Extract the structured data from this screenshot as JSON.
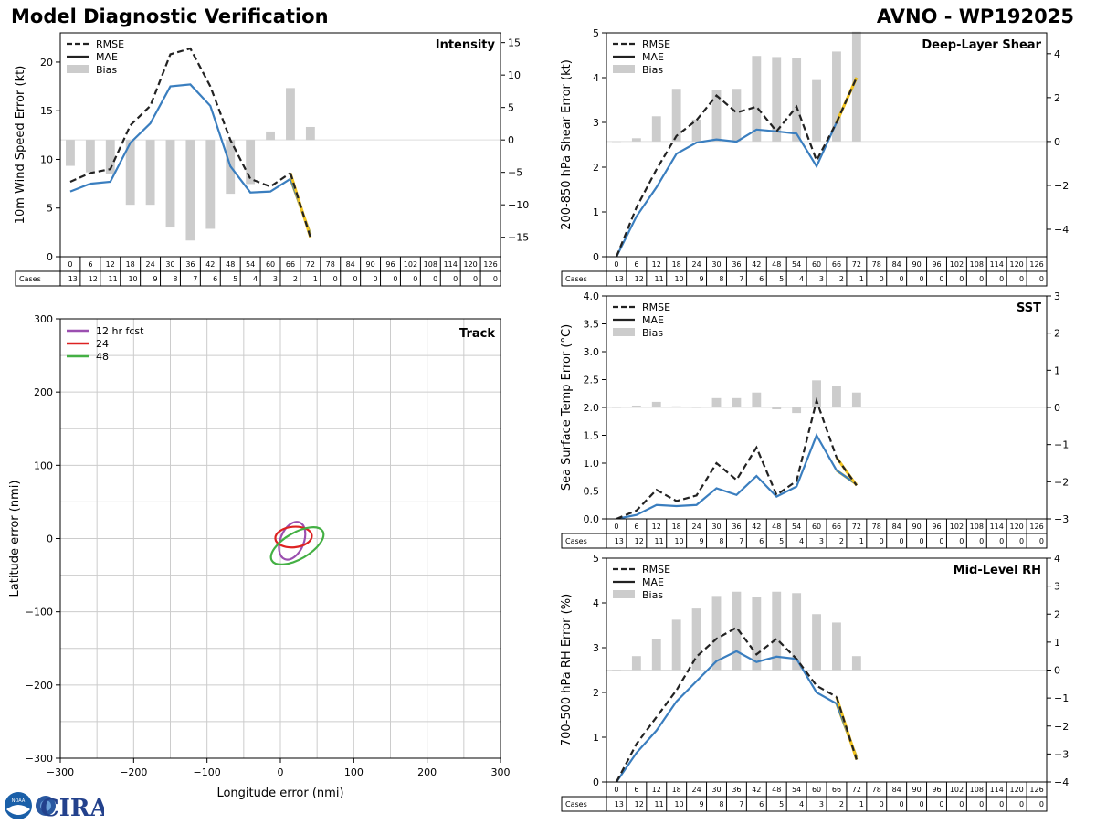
{
  "header": {
    "title_left": "Model Diagnostic Verification",
    "title_right": "AVNO - WP192025"
  },
  "colors": {
    "rmse": "#222222",
    "mae": "#3a7ebf",
    "bias": "#cccccc",
    "highlight": "#f2c31c",
    "grid": "#cccccc",
    "track_12": "#9b4fb0",
    "track_24": "#dd2222",
    "track_48": "#44b044"
  },
  "logos": {
    "noaa": "NOAA",
    "cira": "CIRA"
  },
  "legend": {
    "rmse": "RMSE",
    "mae": "MAE",
    "bias": "Bias"
  },
  "table": {
    "row_label": "Cases",
    "hours": [
      "0",
      "6",
      "12",
      "18",
      "24",
      "30",
      "36",
      "42",
      "48",
      "54",
      "60",
      "66",
      "72",
      "78",
      "84",
      "90",
      "96",
      "102",
      "108",
      "114",
      "120",
      "126"
    ],
    "cases": [
      "13",
      "12",
      "11",
      "10",
      "9",
      "8",
      "7",
      "6",
      "5",
      "4",
      "3",
      "2",
      "1",
      "0",
      "0",
      "0",
      "0",
      "0",
      "0",
      "0",
      "0",
      "0"
    ]
  },
  "chart_data": [
    {
      "id": "intensity",
      "type": "line",
      "title": "Intensity",
      "ylabel": "10m Wind Speed Error (kt)",
      "x": [
        0,
        6,
        12,
        18,
        24,
        30,
        36,
        42,
        48,
        54,
        60,
        66,
        72
      ],
      "ylim": [
        0,
        23
      ],
      "yticks": [
        "0",
        "5",
        "10",
        "15",
        "20"
      ],
      "y2lim": [
        -18,
        16.5
      ],
      "y2ticks": [
        "−15",
        "−10",
        "−5",
        "0",
        "5",
        "10",
        "15"
      ],
      "series": [
        {
          "name": "RMSE",
          "values": [
            7.7,
            8.6,
            9.0,
            13.5,
            15.5,
            20.8,
            21.4,
            17.5,
            12.0,
            8.0,
            7.2,
            8.6,
            2.0
          ]
        },
        {
          "name": "MAE",
          "values": [
            6.7,
            7.5,
            7.7,
            11.7,
            13.7,
            17.5,
            17.7,
            15.5,
            9.3,
            6.6,
            6.7,
            8.0,
            2.3
          ]
        },
        {
          "name": "Bias",
          "values": [
            -4.0,
            -5.0,
            -5.2,
            -10.0,
            -10.0,
            -13.5,
            -15.5,
            -13.7,
            -8.3,
            -6.8,
            1.3,
            8.0,
            2.0
          ]
        }
      ]
    },
    {
      "id": "shear",
      "type": "line",
      "title": "Deep-Layer Shear",
      "ylabel": "200-850 hPa Shear Error (kt)",
      "x": [
        0,
        6,
        12,
        18,
        24,
        30,
        36,
        42,
        48,
        54,
        60,
        66,
        72
      ],
      "ylim": [
        0,
        5
      ],
      "yticks": [
        "0",
        "1",
        "2",
        "3",
        "4",
        "5"
      ],
      "y2lim": [
        -5.25,
        4.95
      ],
      "y2ticks": [
        "−4",
        "−2",
        "0",
        "2",
        "4"
      ],
      "series": [
        {
          "name": "RMSE",
          "values": [
            0.0,
            1.1,
            1.95,
            2.7,
            3.05,
            3.6,
            3.22,
            3.35,
            2.8,
            3.35,
            2.15,
            3.0,
            4.0
          ]
        },
        {
          "name": "MAE",
          "values": [
            0.0,
            0.9,
            1.55,
            2.3,
            2.55,
            2.62,
            2.57,
            2.84,
            2.8,
            2.75,
            2.02,
            3.0,
            4.0
          ]
        },
        {
          "name": "Bias",
          "values": [
            0.0,
            0.15,
            1.15,
            2.4,
            1.0,
            2.35,
            2.4,
            3.9,
            3.85,
            3.8,
            2.8,
            4.1,
            5.0
          ]
        }
      ]
    },
    {
      "id": "sst",
      "type": "line",
      "title": "SST",
      "ylabel": "Sea Surface Temp Error (°C)",
      "x": [
        0,
        6,
        12,
        18,
        24,
        30,
        36,
        42,
        48,
        54,
        60,
        66,
        72
      ],
      "ylim": [
        0,
        4
      ],
      "yticks": [
        "0.0",
        "0.5",
        "1.0",
        "1.5",
        "2.0",
        "2.5",
        "3.0",
        "3.5",
        "4.0"
      ],
      "y2lim": [
        -3,
        3
      ],
      "y2ticks": [
        "−3",
        "−2",
        "−1",
        "0",
        "1",
        "2",
        "3"
      ],
      "series": [
        {
          "name": "RMSE",
          "values": [
            0.0,
            0.15,
            0.52,
            0.32,
            0.42,
            1.0,
            0.7,
            1.28,
            0.43,
            0.68,
            2.12,
            1.1,
            0.6
          ]
        },
        {
          "name": "MAE",
          "values": [
            0.0,
            0.07,
            0.25,
            0.23,
            0.25,
            0.55,
            0.43,
            0.77,
            0.4,
            0.58,
            1.5,
            0.87,
            0.62
          ]
        },
        {
          "name": "Bias",
          "values": [
            0.0,
            0.05,
            0.15,
            0.03,
            0.0,
            0.25,
            0.25,
            0.4,
            -0.05,
            -0.15,
            0.73,
            0.58,
            0.4
          ]
        }
      ]
    },
    {
      "id": "rh",
      "type": "line",
      "title": "Mid-Level RH",
      "ylabel": "700-500 hPa RH Error (%)",
      "x": [
        0,
        6,
        12,
        18,
        24,
        30,
        36,
        42,
        48,
        54,
        60,
        66,
        72
      ],
      "ylim": [
        0,
        5
      ],
      "yticks": [
        "0",
        "1",
        "2",
        "3",
        "4",
        "5"
      ],
      "y2lim": [
        -4,
        4
      ],
      "y2ticks": [
        "−4",
        "−3",
        "−2",
        "−1",
        "0",
        "1",
        "2",
        "3",
        "4"
      ],
      "series": [
        {
          "name": "RMSE",
          "values": [
            0.0,
            0.85,
            1.45,
            2.05,
            2.8,
            3.2,
            3.45,
            2.85,
            3.2,
            2.75,
            2.15,
            1.9,
            0.5
          ]
        },
        {
          "name": "MAE",
          "values": [
            0.0,
            0.65,
            1.15,
            1.8,
            2.25,
            2.7,
            2.92,
            2.68,
            2.8,
            2.75,
            2.0,
            1.75,
            0.55
          ]
        },
        {
          "name": "Bias",
          "values": [
            0.0,
            0.5,
            1.1,
            1.8,
            2.2,
            2.65,
            2.8,
            2.6,
            2.8,
            2.75,
            2.0,
            1.7,
            0.5
          ]
        }
      ]
    },
    {
      "id": "track",
      "type": "line",
      "title": "Track",
      "xlabel": "Longitude error (nmi)",
      "ylabel": "Latitude error (nmi)",
      "xlim": [
        -300,
        300
      ],
      "ylim": [
        -300,
        300
      ],
      "xticks": [
        "−300",
        "−200",
        "−100",
        "0",
        "100",
        "200",
        "300"
      ],
      "yticks": [
        "−300",
        "−200",
        "−100",
        "0",
        "100",
        "200",
        "300"
      ],
      "series": [
        {
          "name": "12 hr fcst",
          "ellipse": {
            "cx": 16,
            "cy": -3,
            "rx": 16,
            "ry": 27,
            "angle_deg": 22
          }
        },
        {
          "name": "24",
          "ellipse": {
            "cx": 18,
            "cy": 2,
            "rx": 25,
            "ry": 14,
            "angle_deg": -5
          }
        },
        {
          "name": "48",
          "ellipse": {
            "cx": 23,
            "cy": -10,
            "rx": 40,
            "ry": 18,
            "angle_deg": -30
          }
        }
      ]
    }
  ]
}
